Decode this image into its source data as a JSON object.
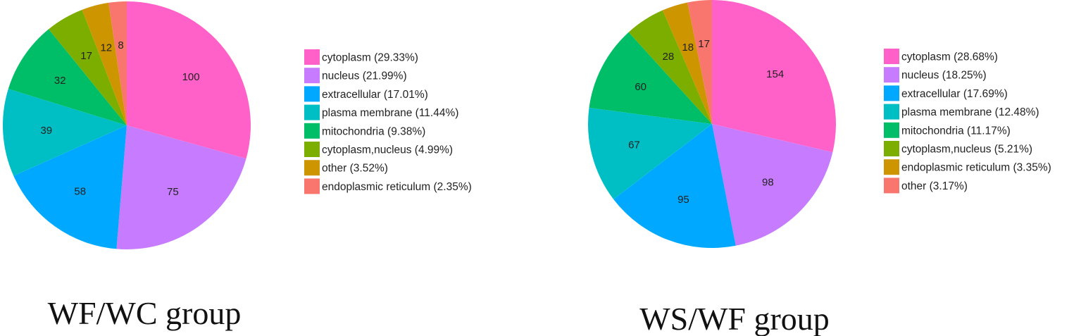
{
  "chart_data": [
    {
      "type": "pie",
      "caption": "WF/WC group",
      "start_angle_deg": 0,
      "direction": "clockwise",
      "legend_position": "right",
      "slices": [
        {
          "label": "cytoplasm",
          "value": 100,
          "legend": "cytoplasm (29.33%)",
          "color": "#FF61C9"
        },
        {
          "label": "nucleus",
          "value": 75,
          "legend": "nucleus (21.99%)",
          "color": "#C77CFF"
        },
        {
          "label": "extracellular",
          "value": 58,
          "legend": "extracellular (17.01%)",
          "color": "#00A9FF"
        },
        {
          "label": "plasma membrane",
          "value": 39,
          "legend": "plasma membrane (11.44%)",
          "color": "#00BFC4"
        },
        {
          "label": "mitochondria",
          "value": 32,
          "legend": "mitochondria (9.38%)",
          "color": "#00BE67"
        },
        {
          "label": "cytoplasm,nucleus",
          "value": 17,
          "legend": "cytoplasm,nucleus (4.99%)",
          "color": "#7CAE00"
        },
        {
          "label": "other",
          "value": 12,
          "legend": "other (3.52%)",
          "color": "#CD9600"
        },
        {
          "label": "endoplasmic reticulum",
          "value": 8,
          "legend": "endoplasmic reticulum (2.35%)",
          "color": "#F8766D"
        }
      ]
    },
    {
      "type": "pie",
      "caption": "WS/WF group",
      "start_angle_deg": 0,
      "direction": "clockwise",
      "legend_position": "right",
      "slices": [
        {
          "label": "cytoplasm",
          "value": 154,
          "legend": "cytoplasm (28.68%)",
          "color": "#FF61C9"
        },
        {
          "label": "nucleus",
          "value": 98,
          "legend": "nucleus (18.25%)",
          "color": "#C77CFF"
        },
        {
          "label": "extracellular",
          "value": 95,
          "legend": "extracellular (17.69%)",
          "color": "#00A9FF"
        },
        {
          "label": "plasma membrane",
          "value": 67,
          "legend": "plasma membrane (12.48%)",
          "color": "#00BFC4"
        },
        {
          "label": "mitochondria",
          "value": 60,
          "legend": "mitochondria (11.17%)",
          "color": "#00BE67"
        },
        {
          "label": "cytoplasm,nucleus",
          "value": 28,
          "legend": "cytoplasm,nucleus (5.21%)",
          "color": "#7CAE00"
        },
        {
          "label": "endoplasmic reticulum",
          "value": 18,
          "legend": "endoplasmic reticulum (3.35%)",
          "color": "#CD9600"
        },
        {
          "label": "other",
          "value": 17,
          "legend": "other (3.17%)",
          "color": "#F8766D"
        }
      ]
    }
  ]
}
